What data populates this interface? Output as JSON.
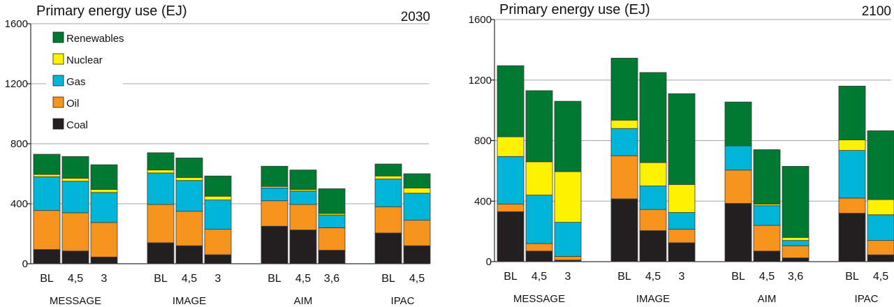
{
  "colors": {
    "Coal": "#231f20",
    "Oil": "#f7941d",
    "Gas": "#00b5d8",
    "Nuclear": "#fff200",
    "Renewables": "#007a33"
  },
  "chart_data": [
    {
      "type": "bar",
      "stacked": true,
      "title": "Primary energy use (EJ)",
      "year_label": "2030",
      "ylim": [
        0,
        1600
      ],
      "yticks": [
        "0",
        "400",
        "800",
        "1200",
        "1600"
      ],
      "grid": true,
      "legend": {
        "placement": "top-left",
        "entries": [
          "Renewables",
          "Nuclear",
          "Gas",
          "Oil",
          "Coal"
        ]
      },
      "groups": [
        {
          "label": "MESSAGE",
          "categories": [
            "BL",
            "4,5",
            "3"
          ]
        },
        {
          "label": "IMAGE",
          "categories": [
            "BL",
            "4,5",
            "3"
          ]
        },
        {
          "label": "AIM",
          "categories": [
            "BL",
            "4,5",
            "3,6"
          ]
        },
        {
          "label": "IPAC",
          "categories": [
            "BL",
            "4,5"
          ]
        }
      ],
      "series": [
        {
          "name": "Coal",
          "values": [
            95,
            85,
            45,
            140,
            120,
            60,
            250,
            225,
            90,
            205,
            120
          ]
        },
        {
          "name": "Oil",
          "values": [
            260,
            255,
            230,
            255,
            230,
            170,
            170,
            170,
            150,
            175,
            170
          ]
        },
        {
          "name": "Gas",
          "values": [
            225,
            210,
            200,
            210,
            205,
            195,
            85,
            90,
            85,
            185,
            180
          ]
        },
        {
          "name": "Nuclear",
          "values": [
            15,
            20,
            20,
            20,
            20,
            25,
            10,
            10,
            10,
            20,
            35
          ]
        },
        {
          "name": "Renewables",
          "values": [
            135,
            145,
            165,
            115,
            130,
            135,
            135,
            130,
            165,
            80,
            95
          ]
        }
      ]
    },
    {
      "type": "bar",
      "stacked": true,
      "title": "Primary energy use (EJ)",
      "year_label": "2100",
      "ylim": [
        0,
        1600
      ],
      "yticks": [
        "0",
        "400",
        "800",
        "1200",
        "1600"
      ],
      "grid": true,
      "groups": [
        {
          "label": "MESSAGE",
          "categories": [
            "BL",
            "4,5",
            "3"
          ]
        },
        {
          "label": "IMAGE",
          "categories": [
            "BL",
            "4,5",
            "3"
          ]
        },
        {
          "label": "AIM",
          "categories": [
            "BL",
            "4,5",
            "3,6"
          ]
        },
        {
          "label": "IPAC",
          "categories": [
            "BL",
            "4,5"
          ]
        }
      ],
      "series": [
        {
          "name": "Coal",
          "values": [
            330,
            70,
            10,
            415,
            205,
            125,
            385,
            70,
            25,
            320,
            45
          ]
        },
        {
          "name": "Oil",
          "values": [
            50,
            50,
            25,
            285,
            140,
            90,
            220,
            170,
            80,
            100,
            95
          ]
        },
        {
          "name": "Gas",
          "values": [
            315,
            320,
            225,
            180,
            155,
            110,
            160,
            130,
            35,
            315,
            170
          ]
        },
        {
          "name": "Nuclear",
          "values": [
            130,
            220,
            335,
            55,
            155,
            185,
            0,
            10,
            20,
            70,
            100
          ]
        },
        {
          "name": "Renewables",
          "values": [
            470,
            470,
            465,
            410,
            595,
            600,
            290,
            360,
            470,
            355,
            455
          ]
        }
      ]
    }
  ]
}
